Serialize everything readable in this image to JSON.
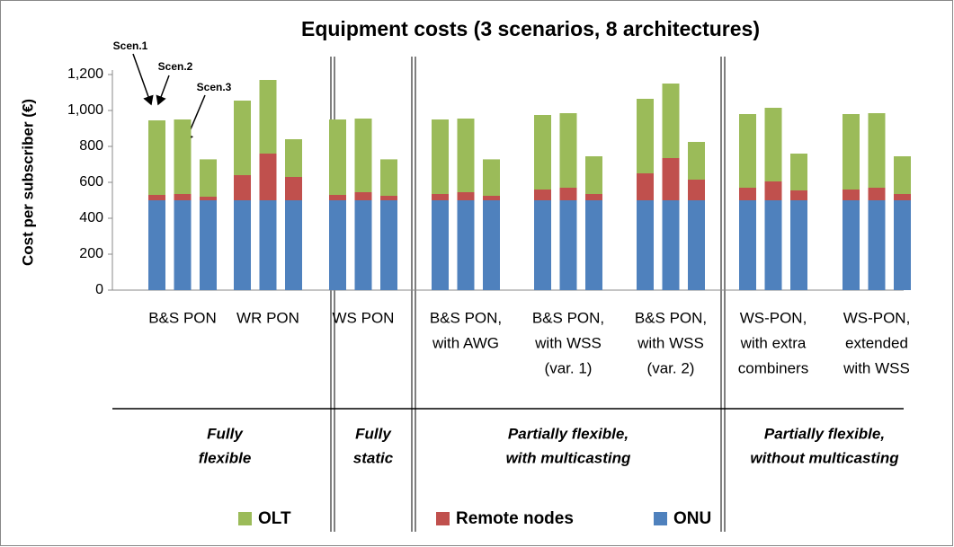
{
  "chart_data": {
    "type": "bar",
    "stacked": true,
    "title": "Equipment costs (3 scenarios, 8 architectures)",
    "y_label": "Cost per subscriber (€)",
    "ylim": [
      0,
      1200
    ],
    "yticks": [
      0,
      200,
      400,
      600,
      800,
      {
        "value": 1000,
        "label": "1,000"
      },
      {
        "value": 1200,
        "label": "1,200"
      }
    ],
    "categories": [
      [
        "B&S PON"
      ],
      [
        "WR PON"
      ],
      [
        "WS PON"
      ],
      [
        "B&S PON,",
        "with AWG"
      ],
      [
        "B&S PON,",
        "with WSS",
        "(var. 1)"
      ],
      [
        "B&S PON,",
        "with WSS",
        "(var. 2)"
      ],
      [
        "WS-PON,",
        "with extra",
        "combiners"
      ],
      [
        "WS-PON,",
        "extended",
        "with WSS"
      ]
    ],
    "groups": [
      {
        "label": [
          "Fully",
          "flexible"
        ]
      },
      {
        "label": [
          "Fully",
          "static"
        ]
      },
      {
        "label": [
          "Partially flexible,",
          "with multicasting"
        ]
      },
      {
        "label": [
          "Partially flexible,",
          "without multicasting"
        ]
      }
    ],
    "scenarios": [
      "Scen.1",
      "Scen.2",
      "Scen.3"
    ],
    "series": [
      {
        "name": "ONU",
        "color": "#4f81bd",
        "values": [
          [
            500,
            500,
            500
          ],
          [
            500,
            500,
            500
          ],
          [
            500,
            500,
            500
          ],
          [
            500,
            500,
            500
          ],
          [
            500,
            500,
            500
          ],
          [
            500,
            500,
            500
          ],
          [
            500,
            500,
            500
          ],
          [
            500,
            500,
            500
          ]
        ]
      },
      {
        "name": "Remote nodes",
        "color": "#c0504d",
        "values": [
          [
            30,
            35,
            20
          ],
          [
            140,
            260,
            130
          ],
          [
            30,
            45,
            25
          ],
          [
            35,
            45,
            25
          ],
          [
            60,
            70,
            35
          ],
          [
            150,
            235,
            115
          ],
          [
            70,
            105,
            55
          ],
          [
            60,
            70,
            35
          ]
        ]
      },
      {
        "name": "OLT",
        "color": "#9bbb59",
        "values": [
          [
            415,
            415,
            208
          ],
          [
            415,
            410,
            210
          ],
          [
            420,
            410,
            203
          ],
          [
            415,
            410,
            203
          ],
          [
            415,
            415,
            210
          ],
          [
            415,
            415,
            210
          ],
          [
            410,
            410,
            205
          ],
          [
            420,
            415,
            210
          ]
        ]
      }
    ]
  }
}
